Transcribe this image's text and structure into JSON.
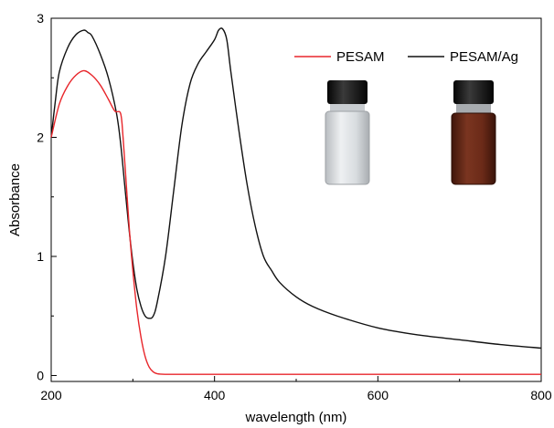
{
  "chart_data": {
    "type": "line",
    "xlabel": "wavelength (nm)",
    "ylabel": "Absorbance",
    "xlim": [
      200,
      800
    ],
    "ylim": [
      -0.05,
      3.0
    ],
    "x_ticks": [
      200,
      400,
      600,
      800
    ],
    "y_ticks": [
      0,
      1,
      2,
      3
    ],
    "grid": false,
    "legend_position": "top-right",
    "series": [
      {
        "name": "PESAM",
        "color": "#e8262b",
        "x": [
          200,
          210,
          220,
          230,
          240,
          250,
          260,
          270,
          278,
          285,
          288,
          292,
          296,
          300,
          305,
          310,
          315,
          320,
          325,
          330,
          340,
          350,
          400,
          500,
          600,
          700,
          800
        ],
        "y": [
          2.0,
          2.28,
          2.43,
          2.52,
          2.56,
          2.52,
          2.44,
          2.32,
          2.22,
          2.2,
          2.0,
          1.6,
          1.2,
          0.88,
          0.55,
          0.32,
          0.16,
          0.07,
          0.03,
          0.015,
          0.01,
          0.01,
          0.01,
          0.01,
          0.01,
          0.01,
          0.01
        ]
      },
      {
        "name": "PESAM/Ag",
        "color": "#111111",
        "x": [
          200,
          205,
          210,
          220,
          230,
          240,
          245,
          250,
          260,
          270,
          280,
          285,
          290,
          295,
          300,
          305,
          310,
          315,
          320,
          325,
          330,
          340,
          350,
          360,
          370,
          380,
          390,
          400,
          405,
          410,
          415,
          420,
          430,
          440,
          450,
          460,
          470,
          480,
          500,
          520,
          550,
          600,
          650,
          700,
          750,
          800
        ],
        "y": [
          2.0,
          2.3,
          2.55,
          2.75,
          2.86,
          2.9,
          2.88,
          2.85,
          2.7,
          2.5,
          2.2,
          1.95,
          1.6,
          1.25,
          0.95,
          0.72,
          0.58,
          0.5,
          0.48,
          0.5,
          0.62,
          1.0,
          1.55,
          2.1,
          2.45,
          2.62,
          2.72,
          2.82,
          2.9,
          2.91,
          2.82,
          2.55,
          2.05,
          1.6,
          1.25,
          1.0,
          0.88,
          0.78,
          0.66,
          0.58,
          0.5,
          0.4,
          0.34,
          0.3,
          0.26,
          0.23
        ]
      }
    ]
  },
  "inset": {
    "vials": [
      {
        "name": "clear",
        "glass_color": "#d4d8dc",
        "cap_color": "#141414"
      },
      {
        "name": "brown",
        "glass_color": "#6b2a18",
        "cap_color": "#141414"
      }
    ]
  }
}
